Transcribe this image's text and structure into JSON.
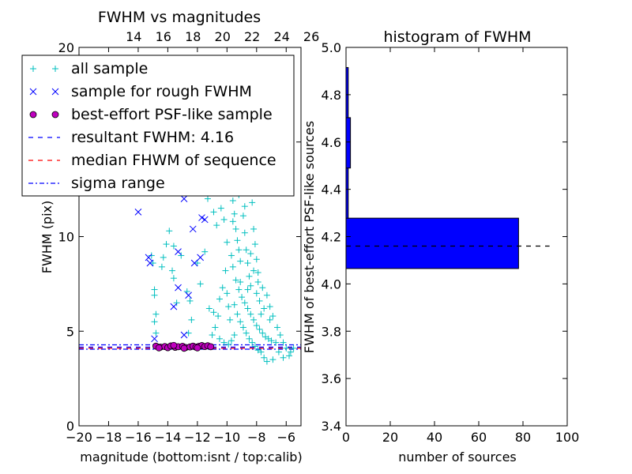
{
  "chart_data": [
    {
      "type": "scatter",
      "title": "FWHM vs magnitudes",
      "xlabel": "magnitude (bottom:isnt / top:calib)",
      "ylabel": "FWHM (pix)",
      "xlim": [
        -20,
        -5
      ],
      "ylim": [
        0,
        20
      ],
      "x_ticks": [
        -20,
        -18,
        -16,
        -14,
        -12,
        -10,
        -8,
        -6
      ],
      "x_tick_labels": [
        "−20",
        "−18",
        "−16",
        "−14",
        "−12",
        "−10",
        "−8",
        "−6"
      ],
      "y_ticks": [
        0,
        5,
        10,
        15,
        20
      ],
      "y_tick_labels": [
        "0",
        "5",
        "10",
        "15",
        "20"
      ],
      "top_axis_ticks": [
        14,
        16,
        18,
        20,
        22,
        24,
        26
      ],
      "top_axis_offset": 30.3,
      "legend": {
        "location": "upper-left",
        "entries": [
          "all sample",
          "sample for rough FWHM",
          "best-effort PSF-like sample",
          "resultant FWHM: 4.16",
          "median FHWM of sequence",
          "sigma range"
        ]
      },
      "series": [
        {
          "name": "all sample",
          "marker": "+",
          "color": "#00bfbf",
          "points": [
            [
              -15.1,
              9.0
            ],
            [
              -15.0,
              8.6
            ],
            [
              -14.9,
              7.2
            ],
            [
              -14.9,
              6.9
            ],
            [
              -14.8,
              5.9
            ],
            [
              -14.9,
              5.5
            ],
            [
              -14.8,
              4.9
            ],
            [
              -14.4,
              8.4
            ],
            [
              -14.3,
              8.9
            ],
            [
              -13.9,
              10.3
            ],
            [
              -14.1,
              9.6
            ],
            [
              -13.6,
              9.5
            ],
            [
              -13.7,
              8.2
            ],
            [
              -13.6,
              7.8
            ],
            [
              -13.4,
              6.5
            ],
            [
              -13.1,
              9.0
            ],
            [
              -12.7,
              7.1
            ],
            [
              -12.5,
              6.6
            ],
            [
              -12.4,
              5.6
            ],
            [
              -12.6,
              4.9
            ],
            [
              -12.3,
              4.2
            ],
            [
              -12.0,
              8.6
            ],
            [
              -11.8,
              7.5
            ],
            [
              -11.5,
              9.2
            ],
            [
              -11.2,
              6.2
            ],
            [
              -11.0,
              4.8
            ],
            [
              -10.9,
              6.0
            ],
            [
              -11.8,
              12.5
            ],
            [
              -11.3,
              12.0
            ],
            [
              -10.8,
              12.6
            ],
            [
              -10.9,
              11.3
            ],
            [
              -10.7,
              10.6
            ],
            [
              -10.4,
              11.5
            ],
            [
              -10.2,
              10.9
            ],
            [
              -10.0,
              9.7
            ],
            [
              -9.8,
              12.4
            ],
            [
              -9.6,
              11.9
            ],
            [
              -9.5,
              11.2
            ],
            [
              -9.4,
              10.4
            ],
            [
              -9.3,
              9.8
            ],
            [
              -9.2,
              9.3
            ],
            [
              -9.1,
              8.7
            ],
            [
              -9.0,
              12.6
            ],
            [
              -8.9,
              11.1
            ],
            [
              -8.8,
              10.2
            ],
            [
              -8.7,
              9.3
            ],
            [
              -8.6,
              8.6
            ],
            [
              -8.5,
              7.9
            ],
            [
              -8.4,
              7.4
            ],
            [
              -8.3,
              11.8
            ],
            [
              -8.2,
              10.4
            ],
            [
              -8.1,
              9.6
            ],
            [
              -8.0,
              8.8
            ],
            [
              -7.9,
              7.6
            ],
            [
              -7.8,
              6.6
            ],
            [
              -7.7,
              5.9
            ],
            [
              -9.6,
              8.4
            ],
            [
              -9.4,
              7.7
            ],
            [
              -9.2,
              7.2
            ],
            [
              -9.0,
              6.8
            ],
            [
              -8.8,
              6.5
            ],
            [
              -8.6,
              6.2
            ],
            [
              -8.4,
              5.9
            ],
            [
              -8.2,
              5.6
            ],
            [
              -8.0,
              5.3
            ],
            [
              -7.8,
              5.1
            ],
            [
              -7.6,
              4.9
            ],
            [
              -7.4,
              4.7
            ],
            [
              -7.2,
              4.6
            ],
            [
              -7.0,
              4.5
            ],
            [
              -9.5,
              6.4
            ],
            [
              -9.3,
              5.9
            ],
            [
              -9.1,
              5.5
            ],
            [
              -8.9,
              5.2
            ],
            [
              -8.7,
              4.9
            ],
            [
              -8.5,
              4.6
            ],
            [
              -8.3,
              4.4
            ],
            [
              -8.1,
              4.2
            ],
            [
              -7.9,
              4.0
            ],
            [
              -7.7,
              3.9
            ],
            [
              -7.5,
              3.6
            ],
            [
              -7.3,
              3.4
            ],
            [
              -6.9,
              3.5
            ],
            [
              -6.5,
              3.9
            ],
            [
              -6.2,
              3.6
            ],
            [
              -5.8,
              3.7
            ],
            [
              -5.5,
              4.1
            ],
            [
              -6.7,
              4.4
            ],
            [
              -7.1,
              5.6
            ],
            [
              -7.5,
              6.2
            ],
            [
              -8.0,
              7.0
            ],
            [
              -8.6,
              7.2
            ],
            [
              -9.1,
              7.6
            ],
            [
              -9.7,
              9.0
            ],
            [
              -10.1,
              8.2
            ],
            [
              -10.3,
              7.3
            ],
            [
              -10.5,
              6.7
            ],
            [
              -10.6,
              5.8
            ],
            [
              -10.8,
              5.2
            ],
            [
              -10.5,
              4.6
            ],
            [
              -10.2,
              4.4
            ],
            [
              -9.9,
              4.3
            ],
            [
              -9.7,
              4.5
            ],
            [
              -9.5,
              4.8
            ],
            [
              -9.8,
              5.6
            ],
            [
              -9.9,
              6.3
            ],
            [
              -10.0,
              7.0
            ],
            [
              -9.6,
              10.8
            ],
            [
              -9.2,
              12.2
            ],
            [
              -8.8,
              11.6
            ],
            [
              -8.4,
              9.1
            ],
            [
              -8.2,
              8.2
            ],
            [
              -7.9,
              8.1
            ],
            [
              -7.6,
              7.3
            ],
            [
              -7.3,
              6.9
            ],
            [
              -7.1,
              6.3
            ],
            [
              -6.9,
              5.8
            ],
            [
              -6.6,
              5.2
            ],
            [
              -6.4,
              4.8
            ],
            [
              -6.2,
              4.4
            ],
            [
              -6.0,
              4.1
            ],
            [
              -5.7,
              3.9
            ]
          ]
        },
        {
          "name": "sample for rough FWHM",
          "marker": "x",
          "color": "#0000ff",
          "points": [
            [
              -16.0,
              11.3
            ],
            [
              -15.3,
              8.9
            ],
            [
              -15.2,
              8.6
            ],
            [
              -14.9,
              4.6
            ],
            [
              -13.6,
              6.3
            ],
            [
              -13.3,
              7.3
            ],
            [
              -13.3,
              9.2
            ],
            [
              -12.9,
              12.0
            ],
            [
              -12.9,
              4.8
            ],
            [
              -12.6,
              6.9
            ],
            [
              -12.3,
              10.4
            ],
            [
              -12.2,
              8.6
            ],
            [
              -11.8,
              8.9
            ],
            [
              -11.7,
              11.0
            ],
            [
              -11.5,
              10.9
            ]
          ]
        },
        {
          "name": "best-effort PSF-like sample",
          "marker": "o",
          "color": "#bf00bf",
          "points": [
            [
              -14.8,
              4.21
            ],
            [
              -14.5,
              4.16
            ],
            [
              -14.2,
              4.19
            ],
            [
              -14.0,
              4.13
            ],
            [
              -13.8,
              4.22
            ],
            [
              -13.5,
              4.15
            ],
            [
              -13.3,
              4.18
            ],
            [
              -13.0,
              4.2
            ],
            [
              -12.8,
              4.14
            ],
            [
              -12.5,
              4.17
            ],
            [
              -12.3,
              4.21
            ],
            [
              -12.1,
              4.16
            ],
            [
              -11.9,
              4.2
            ],
            [
              -11.7,
              4.24
            ],
            [
              -11.5,
              4.19
            ],
            [
              -11.3,
              4.23
            ],
            [
              -11.1,
              4.18
            ],
            [
              -14.6,
              4.12
            ],
            [
              -13.6,
              4.25
            ],
            [
              -12.9,
              4.1
            ],
            [
              -12.0,
              4.12
            ]
          ]
        }
      ],
      "horizontal_lines": [
        {
          "name": "resultant FWHM: 4.16",
          "y": 4.16,
          "color": "#0000ff",
          "style": "dashed"
        },
        {
          "name": "median FHWM of sequence",
          "y": 4.16,
          "color": "#ff0000",
          "style": "dashed"
        },
        {
          "name": "sigma range",
          "y": 4.05,
          "color": "#0000ff",
          "style": "dashdot"
        },
        {
          "name": "sigma range",
          "y": 4.28,
          "color": "#0000ff",
          "style": "dashdot"
        }
      ]
    },
    {
      "type": "bar",
      "orientation": "horizontal",
      "title": "histogram of FWHM",
      "xlabel": "number of sources",
      "ylabel": "FWHM of best-effort PSF-like sources",
      "xlim": [
        0,
        100
      ],
      "ylim": [
        3.4,
        5.0
      ],
      "x_ticks": [
        0,
        20,
        40,
        60,
        80,
        100
      ],
      "x_tick_labels": [
        "0",
        "20",
        "40",
        "60",
        "80",
        "100"
      ],
      "y_ticks": [
        3.4,
        3.6,
        3.8,
        4.0,
        4.2,
        4.4,
        4.6,
        4.8,
        5.0
      ],
      "y_tick_labels": [
        "3.4",
        "3.6",
        "3.8",
        "4.0",
        "4.2",
        "4.4",
        "4.6",
        "4.8",
        "5.0"
      ],
      "bar_color": "#0000ff",
      "bins": [
        {
          "low": 4.065,
          "high": 4.278,
          "count": 78
        },
        {
          "low": 4.278,
          "high": 4.49,
          "count": 1
        },
        {
          "low": 4.49,
          "high": 4.703,
          "count": 2
        },
        {
          "low": 4.703,
          "high": 4.915,
          "count": 1
        }
      ],
      "reference_line": {
        "y": 4.16,
        "x_range": [
          0,
          92
        ],
        "color": "#000000",
        "style": "dashed"
      }
    }
  ]
}
